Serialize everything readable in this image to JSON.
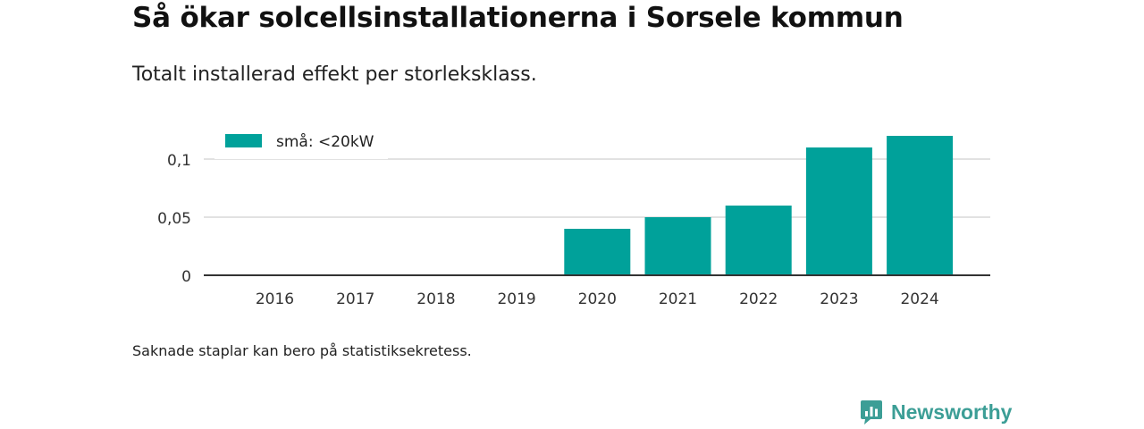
{
  "header": {
    "title": "Så ökar solcellsinstallationerna i Sorsele kommun",
    "subtitle": "Totalt installerad effekt per storleksklass."
  },
  "footer": {
    "note": "Saknade staplar kan bero på statistiksekretess.",
    "brand_name": "Newsworthy"
  },
  "chart_data": {
    "type": "bar",
    "title": "Så ökar solcellsinstallationerna i Sorsele kommun",
    "subtitle": "Totalt installerad effekt per storleksklass.",
    "xlabel": "",
    "ylabel": "",
    "categories": [
      "2016",
      "2017",
      "2018",
      "2019",
      "2020",
      "2021",
      "2022",
      "2023",
      "2024"
    ],
    "series": [
      {
        "name": "små: <20kW",
        "color": "#00a19a",
        "values": [
          null,
          null,
          null,
          null,
          0.04,
          0.05,
          0.06,
          0.11,
          0.12
        ]
      }
    ],
    "ylim": [
      0,
      0.12
    ],
    "yticks": [
      0,
      0.05,
      0.1
    ],
    "ytick_labels": [
      "0",
      "0,05",
      "0,1"
    ],
    "grid": "horizontal",
    "legend_position": "top-left",
    "colors": {
      "bar": "#00a19a",
      "grid": "#d9d9d9",
      "axis": "#333333",
      "brand": "#3c9e96"
    }
  }
}
